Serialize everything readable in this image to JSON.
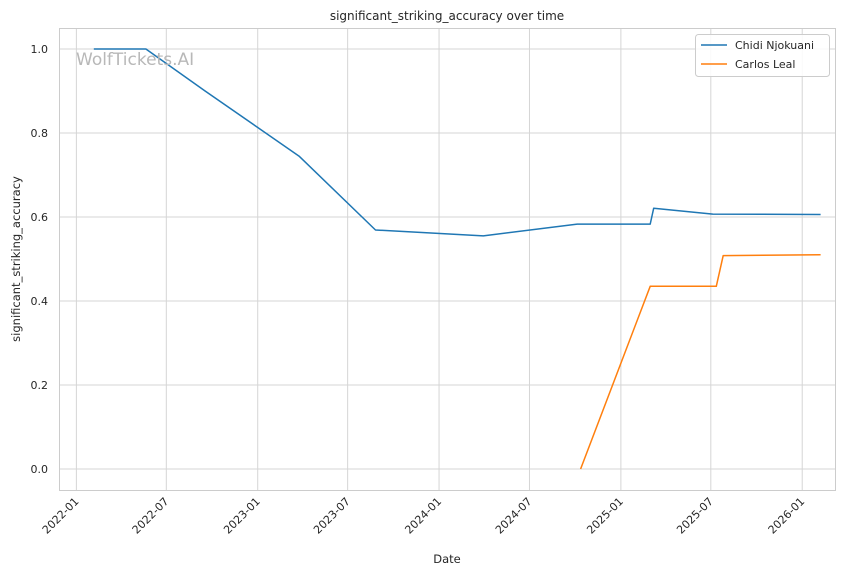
{
  "chart_data": {
    "type": "line",
    "title": "significant_striking_accuracy over time",
    "xlabel": "Date",
    "ylabel": "significant_striking_accuracy",
    "watermark": "WolfTickets.AI",
    "x_ticks": [
      "2022-01",
      "2022-07",
      "2023-01",
      "2023-07",
      "2024-01",
      "2024-07",
      "2025-01",
      "2025-07",
      "2026-01"
    ],
    "y_ticks": [
      "0.0",
      "0.2",
      "0.4",
      "0.6",
      "0.8",
      "1.0"
    ],
    "xlim": [
      "2021-11-29",
      "2026-03-08"
    ],
    "ylim": [
      -0.05,
      1.05
    ],
    "grid": true,
    "legend_position": "top-right",
    "series": [
      {
        "name": "Chidi Njokuani",
        "color": "#1f77b4",
        "points": [
          {
            "x": "2022-02-05",
            "y": 1.0
          },
          {
            "x": "2022-05-21",
            "y": 1.0
          },
          {
            "x": "2022-09-17",
            "y": 0.9
          },
          {
            "x": "2023-03-25",
            "y": 0.745
          },
          {
            "x": "2023-08-26",
            "y": 0.569
          },
          {
            "x": "2024-03-30",
            "y": 0.555
          },
          {
            "x": "2024-10-05",
            "y": 0.583
          },
          {
            "x": "2025-03-01",
            "y": 0.583
          },
          {
            "x": "2025-03-08",
            "y": 0.621
          },
          {
            "x": "2025-07-05",
            "y": 0.607
          },
          {
            "x": "2026-02-07",
            "y": 0.606
          }
        ]
      },
      {
        "name": "Carlos Leal",
        "color": "#ff7f0e",
        "points": [
          {
            "x": "2024-10-12",
            "y": 0.0
          },
          {
            "x": "2025-03-01",
            "y": 0.435
          },
          {
            "x": "2025-07-12",
            "y": 0.435
          },
          {
            "x": "2025-07-26",
            "y": 0.508
          },
          {
            "x": "2026-02-07",
            "y": 0.51
          }
        ]
      }
    ]
  }
}
